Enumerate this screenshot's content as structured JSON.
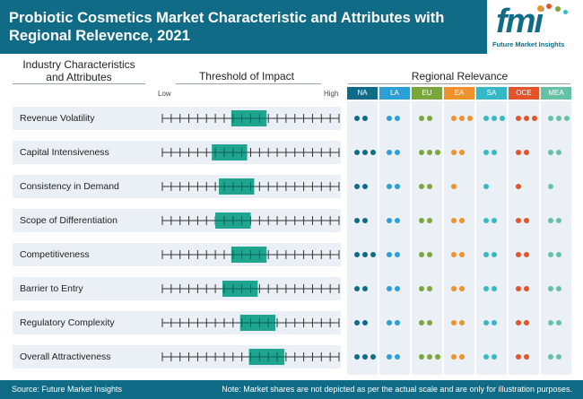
{
  "header": {
    "title": "Probiotic Cosmetics Market Characteristic and Attributes with Regional Relevence, 2021"
  },
  "logo": {
    "mark": "fmi",
    "caption": "Future Market Insights"
  },
  "columns": {
    "characteristics": "Industry Characteristics and Attributes",
    "threshold": "Threshold of Impact",
    "regional": "Regional Relevance"
  },
  "scale": {
    "low": "Low",
    "high": "High"
  },
  "chart_data": {
    "type": "table",
    "description_scale": "threshold 0-10 along Low-High axis",
    "threshold_range": [
      0,
      10
    ],
    "regions": [
      {
        "code": "NA",
        "color": "#0f6b86"
      },
      {
        "code": "LA",
        "color": "#2b9fd6"
      },
      {
        "code": "EU",
        "color": "#7aa63b"
      },
      {
        "code": "EA",
        "color": "#f0922b"
      },
      {
        "code": "SA",
        "color": "#36b9c7"
      },
      {
        "code": "OCE",
        "color": "#e5532a"
      },
      {
        "code": "MEA",
        "color": "#66c2a5"
      }
    ],
    "rows": [
      {
        "label": "Revenue Volatility",
        "impact_start": 3.9,
        "impact_end": 5.9,
        "dots": [
          2,
          2,
          2,
          3,
          3,
          3,
          3
        ]
      },
      {
        "label": "Capital Intensiveness",
        "impact_start": 2.8,
        "impact_end": 4.8,
        "dots": [
          3,
          2,
          3,
          2,
          2,
          2,
          2
        ]
      },
      {
        "label": "Consistency in Demand",
        "impact_start": 3.2,
        "impact_end": 5.2,
        "dots": [
          2,
          2,
          2,
          1,
          1,
          1,
          1
        ]
      },
      {
        "label": "Scope of Differentiation",
        "impact_start": 3.0,
        "impact_end": 5.0,
        "dots": [
          2,
          2,
          2,
          2,
          2,
          2,
          2
        ]
      },
      {
        "label": "Competitiveness",
        "impact_start": 3.9,
        "impact_end": 5.9,
        "dots": [
          3,
          2,
          2,
          2,
          2,
          2,
          2
        ]
      },
      {
        "label": "Barrier to Entry",
        "impact_start": 3.4,
        "impact_end": 5.4,
        "dots": [
          2,
          2,
          2,
          2,
          2,
          2,
          2
        ]
      },
      {
        "label": "Regulatory Complexity",
        "impact_start": 4.4,
        "impact_end": 6.4,
        "dots": [
          2,
          2,
          2,
          2,
          2,
          2,
          2
        ]
      },
      {
        "label": "Overall Attractiveness",
        "impact_start": 4.9,
        "impact_end": 6.9,
        "dots": [
          3,
          2,
          3,
          2,
          2,
          2,
          2
        ]
      }
    ],
    "bar_color": "#1fa58f"
  },
  "footer": {
    "source": "Source: Future Market Insights",
    "note": "Note: Market shares are not depicted as per the actual scale and are only for illustration purposes."
  }
}
